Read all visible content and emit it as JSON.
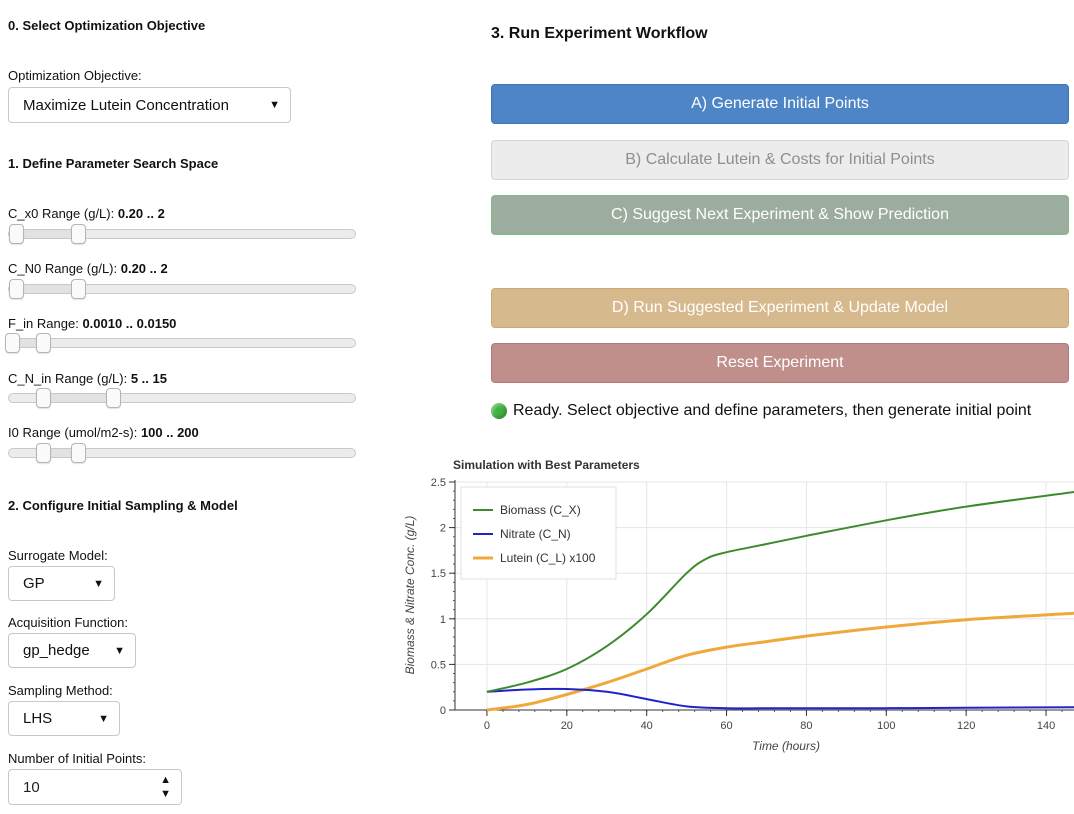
{
  "section0": {
    "title": "0. Select Optimization Objective",
    "objective_label": "Optimization Objective:",
    "objective_value": "Maximize Lutein Concentration"
  },
  "section1": {
    "title": "1. Define Parameter Search Space",
    "sliders": [
      {
        "label": "C_x0 Range (g/L): ",
        "value": "0.20 .. 2"
      },
      {
        "label": "C_N0 Range (g/L): ",
        "value": "0.20 .. 2"
      },
      {
        "label": "F_in Range: ",
        "value": "0.0010 .. 0.0150"
      },
      {
        "label": "C_N_in Range (g/L): ",
        "value": "5 .. 15"
      },
      {
        "label": "I0 Range (umol/m2-s): ",
        "value": "100 .. 200"
      }
    ]
  },
  "section2": {
    "title": "2. Configure Initial Sampling & Model",
    "surrogate_label": "Surrogate Model:",
    "surrogate_value": "GP",
    "acq_label": "Acquisition Function:",
    "acq_value": "gp_hedge",
    "sampling_label": "Sampling Method:",
    "sampling_value": "LHS",
    "npoints_label": "Number of Initial Points:",
    "npoints_value": "10"
  },
  "section3": {
    "title": "3. Run Experiment Workflow",
    "btn_a": "A) Generate Initial Points",
    "btn_b": "B) Calculate Lutein & Costs for Initial Points",
    "btn_c": "C) Suggest Next Experiment & Show Prediction",
    "btn_d": "D) Run Suggested Experiment & Update Model",
    "btn_reset": "Reset Experiment",
    "status": "Ready. Select objective and define parameters, then generate initial point"
  },
  "colors": {
    "btn_a": "#4d85c7",
    "btn_c": "#9cac9e",
    "btn_d": "#d7b98e",
    "btn_reset": "#c08f8c",
    "status_dot": "#3fb23f"
  },
  "chart_data": {
    "type": "line",
    "title": "Simulation with Best Parameters",
    "xlabel": "Time (hours)",
    "ylabel": "Biomass & Nitrate Conc. (g/L)",
    "xlim": [
      -8,
      147
    ],
    "ylim": [
      0,
      2.5
    ],
    "xticks": [
      "0",
      "20",
      "40",
      "60",
      "80",
      "100",
      "120",
      "140"
    ],
    "yticks": [
      "0",
      "0.5",
      "1",
      "1.5",
      "2",
      "2.5"
    ],
    "legend_position": "top-left",
    "grid": true,
    "series": [
      {
        "name": "Biomass (C_X)",
        "color": "#3d8a2e",
        "x": [
          0,
          10,
          20,
          30,
          40,
          50,
          55,
          60,
          70,
          80,
          100,
          120,
          147
        ],
        "y": [
          0.2,
          0.3,
          0.45,
          0.7,
          1.05,
          1.5,
          1.66,
          1.73,
          1.82,
          1.91,
          2.08,
          2.23,
          2.39
        ]
      },
      {
        "name": "Nitrate (C_N)",
        "color": "#1f24c9",
        "x": [
          0,
          10,
          20,
          30,
          40,
          50,
          60,
          80,
          100,
          120,
          147
        ],
        "y": [
          0.2,
          0.225,
          0.23,
          0.2,
          0.12,
          0.04,
          0.02,
          0.02,
          0.02,
          0.025,
          0.03
        ]
      },
      {
        "name": "Lutein (C_L) x100",
        "color": "#f0a83a",
        "x": [
          0,
          10,
          20,
          30,
          40,
          50,
          60,
          70,
          80,
          100,
          120,
          147
        ],
        "y": [
          0.0,
          0.06,
          0.17,
          0.3,
          0.45,
          0.6,
          0.69,
          0.75,
          0.81,
          0.91,
          0.99,
          1.06
        ]
      }
    ]
  }
}
